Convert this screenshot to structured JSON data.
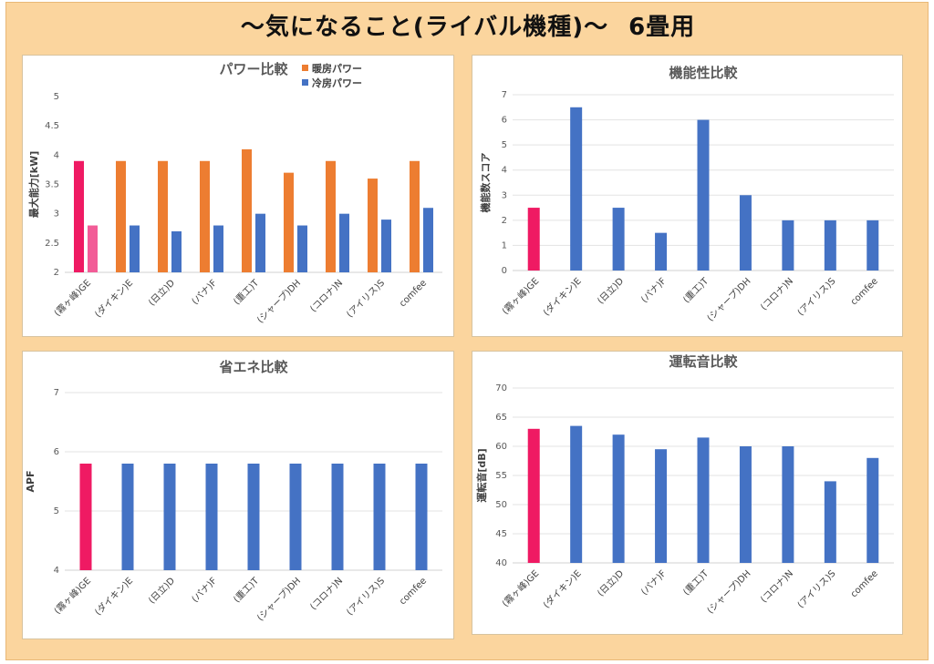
{
  "page": {
    "title": "～気になること(ライバル機種)～",
    "subtitle": "6畳用"
  },
  "colors": {
    "highlight": "#ef1a63",
    "highlight_light": "#f25c97",
    "heating": "#ed7d31",
    "blue": "#4472c4"
  },
  "chart_data": [
    {
      "id": "power",
      "type": "bar",
      "title": "パワー比較",
      "ylabel": "最大能力[kW]",
      "xlabel": "",
      "ylim": [
        2,
        5
      ],
      "yticks": [
        2,
        2.5,
        3,
        3.5,
        4,
        4.5,
        5
      ],
      "grid": false,
      "legend": "top-right",
      "categories": [
        "(霧ヶ峰)GE",
        "(ダイキン)E",
        "(日立)D",
        "(パナ)F",
        "(重工)T",
        "(シャープ)DH",
        "(コロナ)N",
        "(アイリス)S",
        "comfee"
      ],
      "highlight_index": 0,
      "series": [
        {
          "name": "暖房パワー",
          "color": "#ed7d31",
          "values": [
            3.9,
            3.9,
            3.9,
            3.9,
            4.1,
            3.7,
            3.9,
            3.6,
            3.9
          ]
        },
        {
          "name": "冷房パワー",
          "color": "#4472c4",
          "values": [
            2.8,
            2.8,
            2.7,
            2.8,
            3.0,
            2.8,
            3.0,
            2.9,
            3.1
          ]
        }
      ]
    },
    {
      "id": "function",
      "type": "bar",
      "title": "機能性比較",
      "ylabel": "機能数スコア",
      "xlabel": "",
      "ylim": [
        0,
        7
      ],
      "yticks": [
        0,
        1,
        2,
        3,
        4,
        5,
        6,
        7
      ],
      "grid": true,
      "categories": [
        "(霧ヶ峰)GE",
        "(ダイキン)E",
        "(日立)D",
        "(パナ)F",
        "(重工)T",
        "(シャープ)DH",
        "(コロナ)N",
        "(アイリス)S",
        "comfee"
      ],
      "highlight_index": 0,
      "series": [
        {
          "color": "#4472c4",
          "values": [
            2.5,
            6.5,
            2.5,
            1.5,
            6.0,
            3.0,
            2.0,
            2.0,
            2.0
          ]
        }
      ]
    },
    {
      "id": "energy",
      "type": "bar",
      "title": "省エネ比較",
      "ylabel": "APF",
      "xlabel": "",
      "ylim": [
        4,
        7
      ],
      "yticks": [
        4,
        5,
        6,
        7
      ],
      "grid": true,
      "categories": [
        "(霧ヶ峰)GE",
        "(ダイキン)E",
        "(日立)D",
        "(パナ)F",
        "(重工)T",
        "(シャープ)DH",
        "(コロナ)N",
        "(アイリス)S",
        "comfee"
      ],
      "highlight_index": 0,
      "series": [
        {
          "color": "#4472c4",
          "values": [
            5.8,
            5.8,
            5.8,
            5.8,
            5.8,
            5.8,
            5.8,
            5.8,
            5.8
          ]
        }
      ]
    },
    {
      "id": "noise",
      "type": "bar",
      "title": "運転音比較",
      "ylabel": "運転音[dB]",
      "xlabel": "",
      "ylim": [
        40,
        70
      ],
      "yticks": [
        40,
        45,
        50,
        55,
        60,
        65,
        70
      ],
      "grid": true,
      "categories": [
        "(霧ヶ峰)GE",
        "(ダイキン)E",
        "(日立)D",
        "(パナ)F",
        "(重工)T",
        "(シャープ)DH",
        "(コロナ)N",
        "(アイリス)S",
        "comfee"
      ],
      "highlight_index": 0,
      "series": [
        {
          "color": "#4472c4",
          "values": [
            63,
            63.5,
            62,
            59.5,
            61.5,
            60,
            60,
            54,
            58
          ]
        }
      ]
    }
  ]
}
